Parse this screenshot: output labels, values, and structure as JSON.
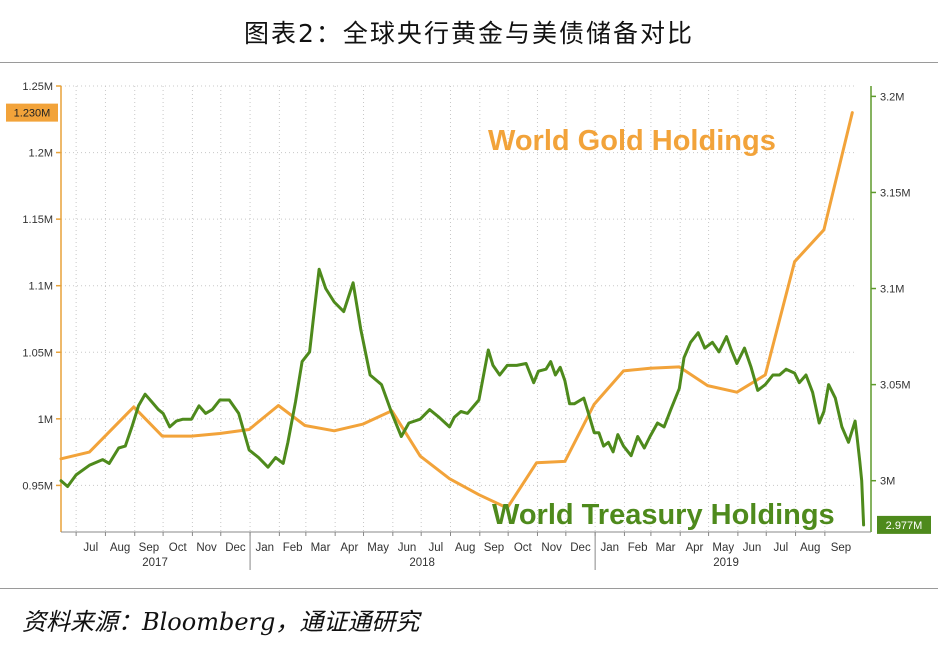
{
  "figure_title": "图表2：全球央行黄金与美债储备对比",
  "source": "资料来源：Bloomberg，通证通研究",
  "chart_data": {
    "type": "line",
    "annotations": {
      "gold": "World Gold Holdings",
      "treasury": "World Treasury Holdings"
    },
    "colors": {
      "gold": "#f2a33a",
      "treasury": "#4e8a1c",
      "axis": "#e8a23a",
      "treasury_axis": "#5e9a2c"
    },
    "grid": true,
    "left_axis": {
      "ylim": [
        0.915,
        1.25
      ],
      "ticks": [
        0.95,
        1.0,
        1.05,
        1.1,
        1.15,
        1.2,
        1.25
      ],
      "tick_labels": [
        "0.95M",
        "1M",
        "1.05M",
        "1.1M",
        "1.15M",
        "1.2M",
        "1.25M"
      ],
      "current_value": 1.23,
      "current_label": "1.230M"
    },
    "right_axis": {
      "ylim": [
        2.9733,
        3.2054
      ],
      "ticks": [
        3.0,
        3.05,
        3.1,
        3.15,
        3.2
      ],
      "tick_labels": [
        "3M",
        "3.05M",
        "3.1M",
        "3.15M",
        "3.2M"
      ],
      "current_value": 2.977,
      "current_label": "2.977M"
    },
    "x_axis": {
      "range": [
        "2017-06-15",
        "2019-10-05"
      ],
      "months": [
        {
          "label": "Jul",
          "date": "2017-07-01"
        },
        {
          "label": "Aug",
          "date": "2017-08-01"
        },
        {
          "label": "Sep",
          "date": "2017-09-01"
        },
        {
          "label": "Oct",
          "date": "2017-10-01"
        },
        {
          "label": "Nov",
          "date": "2017-11-01"
        },
        {
          "label": "Dec",
          "date": "2017-12-01"
        },
        {
          "label": "Jan",
          "date": "2018-01-01"
        },
        {
          "label": "Feb",
          "date": "2018-02-01"
        },
        {
          "label": "Mar",
          "date": "2018-03-01"
        },
        {
          "label": "Apr",
          "date": "2018-04-01"
        },
        {
          "label": "May",
          "date": "2018-05-01"
        },
        {
          "label": "Jun",
          "date": "2018-06-01"
        },
        {
          "label": "Jul",
          "date": "2018-07-01"
        },
        {
          "label": "Aug",
          "date": "2018-08-01"
        },
        {
          "label": "Sep",
          "date": "2018-09-01"
        },
        {
          "label": "Oct",
          "date": "2018-10-01"
        },
        {
          "label": "Nov",
          "date": "2018-11-01"
        },
        {
          "label": "Dec",
          "date": "2018-12-01"
        },
        {
          "label": "Jan",
          "date": "2019-01-01"
        },
        {
          "label": "Feb",
          "date": "2019-02-01"
        },
        {
          "label": "Mar",
          "date": "2019-03-01"
        },
        {
          "label": "Apr",
          "date": "2019-04-01"
        },
        {
          "label": "May",
          "date": "2019-05-01"
        },
        {
          "label": "Jun",
          "date": "2019-06-01"
        },
        {
          "label": "Jul",
          "date": "2019-07-01"
        },
        {
          "label": "Aug",
          "date": "2019-08-01"
        },
        {
          "label": "Sep",
          "date": "2019-09-01"
        }
      ],
      "years": [
        {
          "label": "2017",
          "start": "2017-06-15",
          "end": "2017-12-31"
        },
        {
          "label": "2018",
          "start": "2018-01-01",
          "end": "2018-12-31"
        },
        {
          "label": "2019",
          "start": "2019-01-01",
          "end": "2019-10-05"
        }
      ]
    },
    "series": [
      {
        "name": "World Gold Holdings",
        "axis": "left",
        "color": "#f2a33a",
        "points": [
          [
            "2017-06-15",
            0.97
          ],
          [
            "2017-07-15",
            0.975
          ],
          [
            "2017-08-31",
            1.009
          ],
          [
            "2017-09-30",
            0.987
          ],
          [
            "2017-10-31",
            0.987
          ],
          [
            "2017-11-30",
            0.989
          ],
          [
            "2017-12-31",
            0.992
          ],
          [
            "2018-01-31",
            1.01
          ],
          [
            "2018-02-28",
            0.995
          ],
          [
            "2018-03-31",
            0.991
          ],
          [
            "2018-04-30",
            0.996
          ],
          [
            "2018-05-31",
            1.006
          ],
          [
            "2018-06-30",
            0.972
          ],
          [
            "2018-07-31",
            0.955
          ],
          [
            "2018-08-31",
            0.943
          ],
          [
            "2018-09-30",
            0.933
          ],
          [
            "2018-10-31",
            0.967
          ],
          [
            "2018-11-30",
            0.968
          ],
          [
            "2018-12-31",
            1.011
          ],
          [
            "2019-01-31",
            1.036
          ],
          [
            "2019-02-28",
            1.038
          ],
          [
            "2019-03-31",
            1.039
          ],
          [
            "2019-04-30",
            1.025
          ],
          [
            "2019-05-31",
            1.02
          ],
          [
            "2019-06-30",
            1.033
          ],
          [
            "2019-07-31",
            1.118
          ],
          [
            "2019-08-31",
            1.142
          ],
          [
            "2019-09-30",
            1.23
          ]
        ]
      },
      {
        "name": "World Treasury Holdings",
        "axis": "right",
        "color": "#4e8a1c",
        "points": [
          [
            "2017-06-15",
            3.0
          ],
          [
            "2017-06-22",
            2.997
          ],
          [
            "2017-07-01",
            3.003
          ],
          [
            "2017-07-15",
            3.008
          ],
          [
            "2017-07-29",
            3.011
          ],
          [
            "2017-08-05",
            3.009
          ],
          [
            "2017-08-15",
            3.017
          ],
          [
            "2017-08-22",
            3.018
          ],
          [
            "2017-08-29",
            3.028
          ],
          [
            "2017-09-05",
            3.039
          ],
          [
            "2017-09-12",
            3.045
          ],
          [
            "2017-09-19",
            3.041
          ],
          [
            "2017-09-26",
            3.037
          ],
          [
            "2017-10-01",
            3.035
          ],
          [
            "2017-10-08",
            3.028
          ],
          [
            "2017-10-15",
            3.031
          ],
          [
            "2017-10-22",
            3.032
          ],
          [
            "2017-10-31",
            3.032
          ],
          [
            "2017-11-08",
            3.039
          ],
          [
            "2017-11-15",
            3.035
          ],
          [
            "2017-11-22",
            3.037
          ],
          [
            "2017-11-30",
            3.042
          ],
          [
            "2017-12-10",
            3.042
          ],
          [
            "2017-12-20",
            3.035
          ],
          [
            "2017-12-31",
            3.016
          ],
          [
            "2018-01-10",
            3.012
          ],
          [
            "2018-01-20",
            3.007
          ],
          [
            "2018-01-28",
            3.012
          ],
          [
            "2018-02-05",
            3.009
          ],
          [
            "2018-02-10",
            3.02
          ],
          [
            "2018-02-18",
            3.041
          ],
          [
            "2018-02-25",
            3.062
          ],
          [
            "2018-03-05",
            3.067
          ],
          [
            "2018-03-10",
            3.089
          ],
          [
            "2018-03-15",
            3.11
          ],
          [
            "2018-03-22",
            3.1
          ],
          [
            "2018-03-31",
            3.093
          ],
          [
            "2018-04-10",
            3.088
          ],
          [
            "2018-04-20",
            3.103
          ],
          [
            "2018-04-28",
            3.079
          ],
          [
            "2018-05-08",
            3.055
          ],
          [
            "2018-05-20",
            3.05
          ],
          [
            "2018-05-31",
            3.035
          ],
          [
            "2018-06-10",
            3.023
          ],
          [
            "2018-06-18",
            3.03
          ],
          [
            "2018-06-30",
            3.032
          ],
          [
            "2018-07-10",
            3.037
          ],
          [
            "2018-07-20",
            3.033
          ],
          [
            "2018-07-31",
            3.028
          ],
          [
            "2018-08-05",
            3.033
          ],
          [
            "2018-08-12",
            3.036
          ],
          [
            "2018-08-19",
            3.035
          ],
          [
            "2018-08-31",
            3.042
          ],
          [
            "2018-09-10",
            3.068
          ],
          [
            "2018-09-15",
            3.06
          ],
          [
            "2018-09-22",
            3.055
          ],
          [
            "2018-09-30",
            3.06
          ],
          [
            "2018-10-10",
            3.06
          ],
          [
            "2018-10-20",
            3.061
          ],
          [
            "2018-10-28",
            3.051
          ],
          [
            "2018-11-02",
            3.057
          ],
          [
            "2018-11-10",
            3.058
          ],
          [
            "2018-11-15",
            3.062
          ],
          [
            "2018-11-20",
            3.055
          ],
          [
            "2018-11-25",
            3.059
          ],
          [
            "2018-11-30",
            3.052
          ],
          [
            "2018-12-05",
            3.04
          ],
          [
            "2018-12-10",
            3.04
          ],
          [
            "2018-12-20",
            3.043
          ],
          [
            "2018-12-25",
            3.035
          ],
          [
            "2018-12-31",
            3.025
          ],
          [
            "2019-01-05",
            3.025
          ],
          [
            "2019-01-10",
            3.018
          ],
          [
            "2019-01-15",
            3.02
          ],
          [
            "2019-01-20",
            3.015
          ],
          [
            "2019-01-25",
            3.024
          ],
          [
            "2019-01-31",
            3.018
          ],
          [
            "2019-02-08",
            3.013
          ],
          [
            "2019-02-15",
            3.023
          ],
          [
            "2019-02-22",
            3.017
          ],
          [
            "2019-02-28",
            3.023
          ],
          [
            "2019-03-08",
            3.03
          ],
          [
            "2019-03-15",
            3.028
          ],
          [
            "2019-03-22",
            3.037
          ],
          [
            "2019-03-31",
            3.048
          ],
          [
            "2019-04-05",
            3.064
          ],
          [
            "2019-04-12",
            3.072
          ],
          [
            "2019-04-20",
            3.077
          ],
          [
            "2019-04-27",
            3.069
          ],
          [
            "2019-05-05",
            3.072
          ],
          [
            "2019-05-12",
            3.067
          ],
          [
            "2019-05-20",
            3.075
          ],
          [
            "2019-05-25",
            3.068
          ],
          [
            "2019-05-31",
            3.061
          ],
          [
            "2019-06-08",
            3.069
          ],
          [
            "2019-06-15",
            3.059
          ],
          [
            "2019-06-22",
            3.047
          ],
          [
            "2019-06-30",
            3.05
          ],
          [
            "2019-07-08",
            3.055
          ],
          [
            "2019-07-15",
            3.055
          ],
          [
            "2019-07-22",
            3.058
          ],
          [
            "2019-07-31",
            3.056
          ],
          [
            "2019-08-05",
            3.051
          ],
          [
            "2019-08-12",
            3.055
          ],
          [
            "2019-08-19",
            3.046
          ],
          [
            "2019-08-26",
            3.03
          ],
          [
            "2019-08-31",
            3.036
          ],
          [
            "2019-09-05",
            3.05
          ],
          [
            "2019-09-12",
            3.043
          ],
          [
            "2019-09-19",
            3.028
          ],
          [
            "2019-09-26",
            3.02
          ],
          [
            "2019-10-03",
            3.031
          ],
          [
            "2019-10-05",
            3.023
          ],
          [
            "2019-10-08",
            3.01
          ],
          [
            "2019-10-10",
            3.0
          ],
          [
            "2019-10-12",
            2.977
          ]
        ]
      }
    ]
  }
}
